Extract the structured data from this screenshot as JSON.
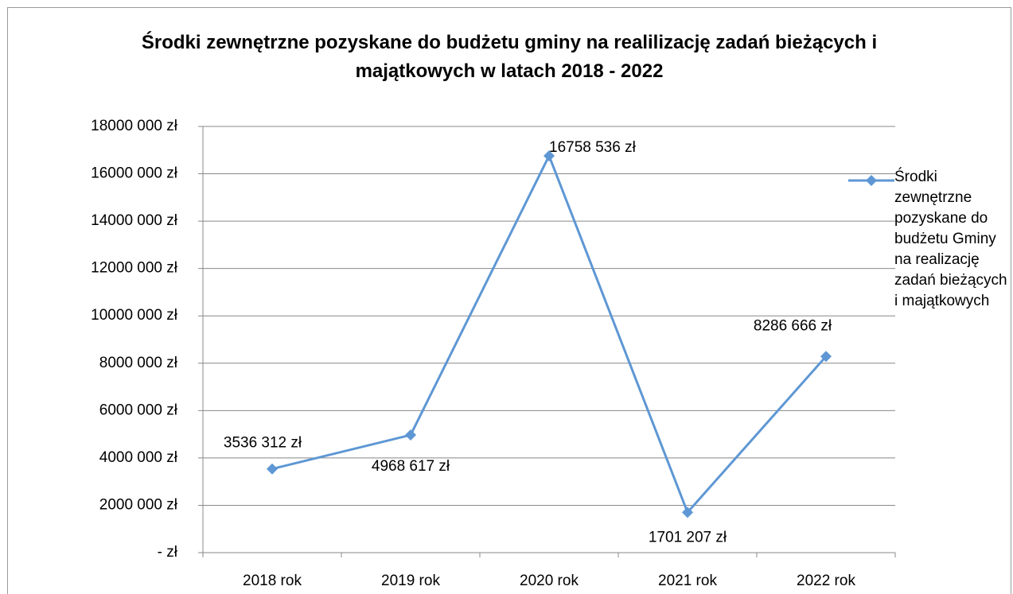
{
  "chart_data": {
    "type": "line",
    "title": "Środki zewnętrzne pozyskane do budżetu gminy na realilizację zadań bieżących i majątkowych w latach 2018 - 2022",
    "categories": [
      "2018 rok",
      "2019 rok",
      "2020 rok",
      "2021 rok",
      "2022 rok"
    ],
    "series": [
      {
        "name": "Środki zewnętrzne pozyskane do budżetu Gminy na realizację zadań bieżących i majątkowych",
        "color": "#5e97d4",
        "values": [
          3536312,
          4968617,
          16758536,
          1701207,
          8286666
        ],
        "value_labels": [
          "3536 312 zł",
          "4968 617 zł",
          "16758 536 zł",
          "1701 207 zł",
          "8286 666 zł"
        ]
      }
    ],
    "ylim": [
      0,
      18000000
    ],
    "yticks": [
      {
        "value": 0,
        "label": "-  zł"
      },
      {
        "value": 2000000,
        "label": "2000 000 zł"
      },
      {
        "value": 4000000,
        "label": "4000 000 zł"
      },
      {
        "value": 6000000,
        "label": "6000 000 zł"
      },
      {
        "value": 8000000,
        "label": "8000 000 zł"
      },
      {
        "value": 10000000,
        "label": "10000 000 zł"
      },
      {
        "value": 12000000,
        "label": "12000 000 zł"
      },
      {
        "value": 14000000,
        "label": "14000 000 zł"
      },
      {
        "value": 16000000,
        "label": "16000 000 zł"
      },
      {
        "value": 18000000,
        "label": "18000 000 zł"
      }
    ],
    "grid": true,
    "legend": "right"
  }
}
